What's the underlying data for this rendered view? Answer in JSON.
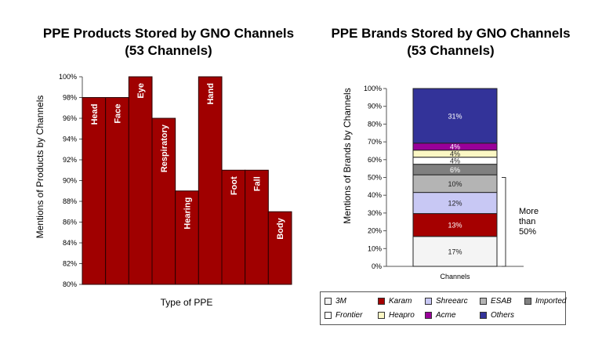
{
  "chart_data": [
    {
      "type": "bar",
      "title": "PPE Products Stored by GNO Channels",
      "subtitle": "(53 Channels)",
      "xlabel": "Type of PPE",
      "ylabel": "Mentions of Products by Channels",
      "categories": [
        "Head",
        "Face",
        "Eye",
        "Respiratory",
        "Hearing",
        "Hand",
        "Foot",
        "Fall",
        "Body"
      ],
      "values": [
        98,
        98,
        100,
        96,
        89,
        100,
        91,
        91,
        87
      ],
      "ylim": [
        80,
        100
      ],
      "yticks": [
        "80%",
        "82%",
        "84%",
        "86%",
        "88%",
        "90%",
        "92%",
        "94%",
        "96%",
        "98%",
        "100%"
      ],
      "color": "#a00000",
      "grid": false
    },
    {
      "type": "bar",
      "stacked": true,
      "title": "PPE Brands Stored by GNO Channels",
      "subtitle": "(53 Channels)",
      "ylabel": "Mentions of Brands by Channels",
      "categories": [
        "Channels"
      ],
      "ylim": [
        0,
        100
      ],
      "yticks": [
        "0%",
        "10%",
        "20%",
        "30%",
        "40%",
        "50%",
        "60%",
        "70%",
        "80%",
        "90%",
        "100%"
      ],
      "series": [
        {
          "name": "3M",
          "value": 17,
          "label": "17%",
          "color": "#f4f4f4"
        },
        {
          "name": "Karam",
          "value": 13,
          "label": "13%",
          "color": "#a50000"
        },
        {
          "name": "Shreearc",
          "value": 12,
          "label": "12%",
          "color": "#c8c8f4"
        },
        {
          "name": "ESAB",
          "value": 10,
          "label": "10%",
          "color": "#b4b4b4"
        },
        {
          "name": "Imported",
          "value": 6,
          "label": "6%",
          "color": "#808080"
        },
        {
          "name": "Frontier",
          "value": 4,
          "label": "4%",
          "color": "#ffffff"
        },
        {
          "name": "Heapro",
          "value": 4,
          "label": "4%",
          "color": "#fbf7c4"
        },
        {
          "name": "Acme",
          "value": 4,
          "label": "4%",
          "color": "#990099"
        },
        {
          "name": "Others",
          "value": 31,
          "label": "31%",
          "color": "#333399"
        }
      ],
      "annotation": "More than 50%",
      "legend_position": "bottom",
      "grid": false
    }
  ]
}
